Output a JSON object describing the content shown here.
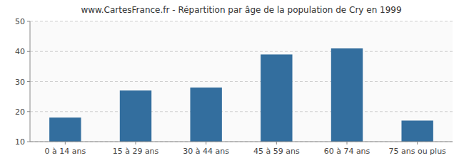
{
  "chart_data": {
    "type": "bar",
    "title": "www.CartesFrance.fr - Répartition par âge de la population de Cry en 1999",
    "categories": [
      "0 à 14 ans",
      "15 à 29 ans",
      "30 à 44 ans",
      "45 à 59 ans",
      "60 à 74 ans",
      "75 ans ou plus"
    ],
    "values": [
      18,
      27,
      28,
      39,
      41,
      17
    ],
    "color": "#336e9e",
    "ylim": [
      10,
      50
    ],
    "yticks": [
      10,
      20,
      30,
      40,
      50
    ],
    "grid": true
  }
}
